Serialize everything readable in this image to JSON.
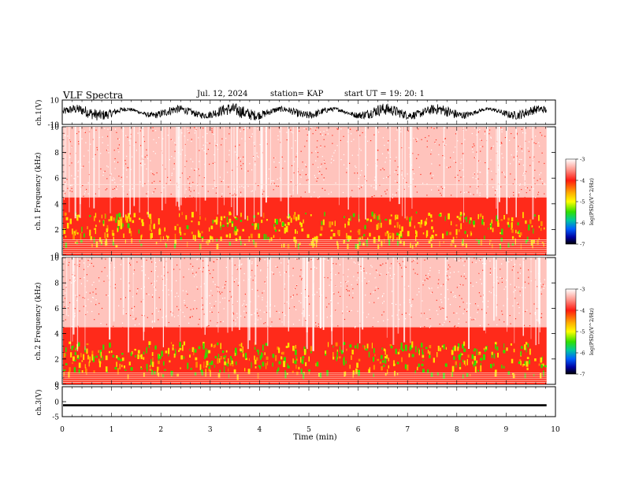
{
  "header": {
    "title": "VLF Spectra",
    "date": "Jul. 12, 2024",
    "station": "station= KAP",
    "start_ut": "start UT =  19: 20: 1"
  },
  "colors": {
    "waveform": "#000000",
    "spectro_bg": "#ffffff",
    "spectro_mid": "#ff2a1a",
    "spectro_yellow": "#ffe000",
    "spectro_green": "#33dd00",
    "colorbar_top": "#ffffff",
    "colorbar_bottom": "#000000"
  },
  "chart_data": [
    {
      "type": "line",
      "panel": "ch1-waveform",
      "ylabel": "ch.1(V)",
      "ylim": [
        -10,
        10
      ],
      "ytick_labels": [
        "10",
        "-10"
      ],
      "xlim": [
        0,
        10
      ],
      "x_span_min": [
        0,
        9.82
      ],
      "noise_range": [
        -6,
        6
      ]
    },
    {
      "type": "heatmap",
      "panel": "ch1-spectrogram",
      "ylabel": "ch.1 Frequency (kHz)",
      "ylim": [
        0,
        10
      ],
      "ytick_labels": [
        "0",
        "2",
        "4",
        "6",
        "8",
        "10"
      ],
      "xlim": [
        0,
        10
      ],
      "x_span_min": [
        0,
        9.82
      ],
      "hum_lines_khz": [
        0.15,
        0.3,
        0.45,
        0.6,
        0.75,
        0.9,
        1.05,
        1.2
      ],
      "bright_line_khz": 5.5,
      "colorbar": {
        "label": "log(PSD)(V^2/Hz)",
        "range": [
          -7,
          -3
        ],
        "tick_labels": [
          "-3",
          "-4",
          "-5",
          "-6",
          "-7"
        ]
      }
    },
    {
      "type": "heatmap",
      "panel": "ch2-spectrogram",
      "ylabel": "ch.2 Frequency (kHz)",
      "ylim": [
        0,
        10
      ],
      "ytick_labels": [
        "0",
        "2",
        "4",
        "6",
        "8",
        "10"
      ],
      "xlim": [
        0,
        10
      ],
      "x_span_min": [
        0,
        9.82
      ],
      "hum_lines_khz": [
        0.15,
        0.3,
        0.45,
        0.6,
        0.75,
        0.9
      ],
      "colorbar": {
        "label": "log(PSD)(V^2/Hz)",
        "range": [
          -7,
          -3
        ],
        "tick_labels": [
          "-3",
          "-4",
          "-5",
          "-6",
          "-7"
        ]
      }
    },
    {
      "type": "line",
      "panel": "ch3-waveform",
      "ylabel": "ch.3(V)",
      "ylim": [
        -5,
        5
      ],
      "ytick_labels": [
        "5",
        "0",
        "-5"
      ],
      "xlim": [
        0,
        10
      ],
      "x_span_min": [
        0,
        9.82
      ],
      "level": -1.2,
      "xlabel": "Time (min)",
      "xtick_labels": [
        "0",
        "1",
        "2",
        "3",
        "4",
        "5",
        "6",
        "7",
        "8",
        "9",
        "10"
      ]
    }
  ]
}
